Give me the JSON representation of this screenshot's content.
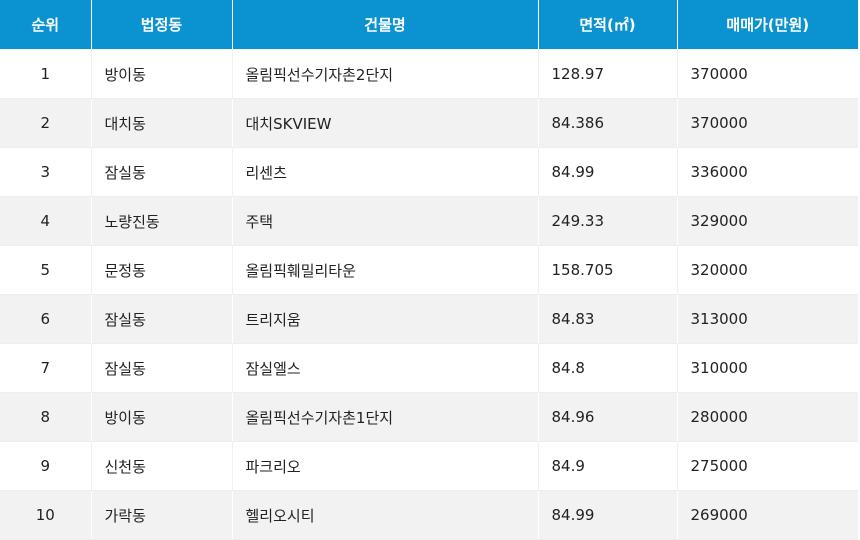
{
  "table": {
    "headers": [
      "순위",
      "법정동",
      "건물명",
      "면적(㎡)",
      "매매가(만원)"
    ],
    "rows": [
      {
        "rank": "1",
        "dong": "방이동",
        "building": "올림픽선수기자촌2단지",
        "area": "128.97",
        "price": "370000"
      },
      {
        "rank": "2",
        "dong": "대치동",
        "building": "대치SKVIEW",
        "area": "84.386",
        "price": "370000"
      },
      {
        "rank": "3",
        "dong": "잠실동",
        "building": "리센츠",
        "area": "84.99",
        "price": "336000"
      },
      {
        "rank": "4",
        "dong": "노량진동",
        "building": "주택",
        "area": "249.33",
        "price": "329000"
      },
      {
        "rank": "5",
        "dong": "문정동",
        "building": "올림픽훼밀리타운",
        "area": "158.705",
        "price": "320000"
      },
      {
        "rank": "6",
        "dong": "잠실동",
        "building": "트리지움",
        "area": "84.83",
        "price": "313000"
      },
      {
        "rank": "7",
        "dong": "잠실동",
        "building": "잠실엘스",
        "area": "84.8",
        "price": "310000"
      },
      {
        "rank": "8",
        "dong": "방이동",
        "building": "올림픽선수기자촌1단지",
        "area": "84.96",
        "price": "280000"
      },
      {
        "rank": "9",
        "dong": "신천동",
        "building": "파크리오",
        "area": "84.9",
        "price": "275000"
      },
      {
        "rank": "10",
        "dong": "가락동",
        "building": "헬리오시티",
        "area": "84.99",
        "price": "269000"
      }
    ]
  },
  "colors": {
    "header_bg": "#0a93d0",
    "header_text": "#ffffff",
    "row_alt_bg": "#f2f2f2",
    "body_text": "#222222"
  }
}
